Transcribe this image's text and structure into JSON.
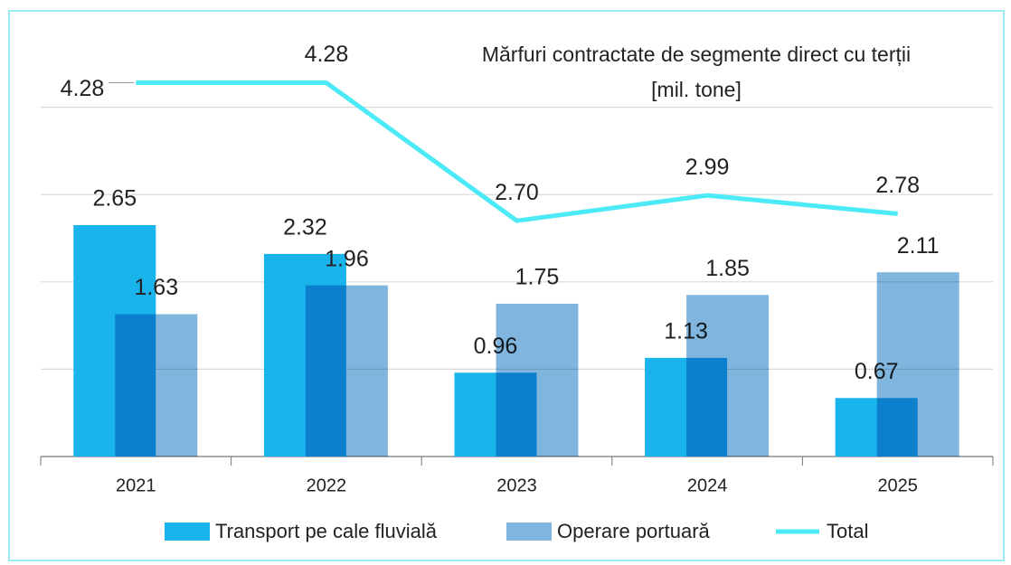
{
  "chart_data": {
    "type": "bar_line",
    "title": [
      "Mărfuri contractate de segmente direct cu terții",
      "[mil. tone]"
    ],
    "categories": [
      "2021",
      "2022",
      "2023",
      "2024",
      "2025"
    ],
    "series": [
      {
        "name": "Transport pe cale fluvială",
        "type": "bar",
        "color": "#1ab4ec",
        "values": [
          2.65,
          2.32,
          0.96,
          1.13,
          0.67
        ]
      },
      {
        "name": "Operare portuară",
        "type": "bar",
        "color": "#80b6de",
        "values": [
          1.63,
          1.96,
          1.75,
          1.85,
          2.11
        ]
      },
      {
        "name": "Total",
        "type": "line",
        "color": "#4ceaf7",
        "values": [
          4.28,
          4.28,
          2.7,
          2.99,
          2.78
        ],
        "value_labels": [
          "4.28",
          "4.28",
          "2.70",
          "2.99",
          "2.78"
        ]
      }
    ],
    "ylim": [
      0,
      5
    ],
    "yticks": [
      0,
      1,
      2,
      3,
      4
    ],
    "grid": true,
    "legend": "bottom"
  }
}
